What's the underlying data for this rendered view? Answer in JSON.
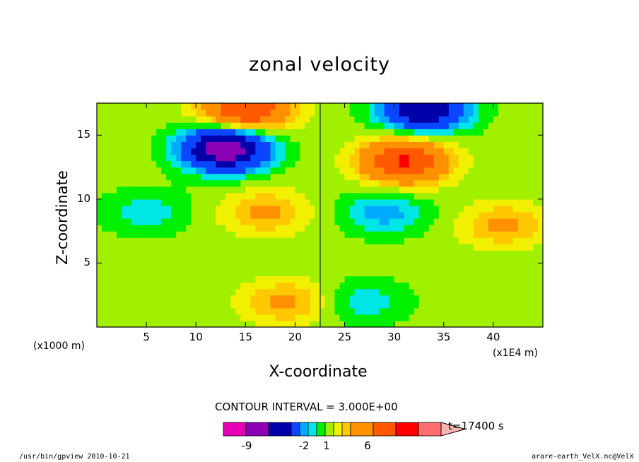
{
  "chart_data": {
    "type": "heatmap",
    "title": "zonal velocity",
    "xlabel": "X-coordinate",
    "ylabel": "Z-coordinate",
    "x_unit": "(x1E4 m)",
    "y_unit": "(x1000 m)",
    "xlim": [
      0,
      45
    ],
    "ylim": [
      0,
      17.5
    ],
    "xticks": [
      5,
      10,
      15,
      20,
      25,
      30,
      35,
      40
    ],
    "yticks": [
      5,
      10,
      15
    ],
    "contour_interval_text": "CONTOUR INTERVAL = 3.000E+00",
    "time_text": "t=17400 s",
    "colorbar": {
      "levels": [
        -12,
        -9,
        -6,
        -3,
        -2,
        -1,
        0,
        1,
        2,
        3,
        6,
        9,
        12
      ],
      "colors": [
        "#e600b4",
        "#8c00b4",
        "#0000aa",
        "#0a46ff",
        "#00aaff",
        "#00e6e6",
        "#00f000",
        "#a0f000",
        "#f0f000",
        "#ffc800",
        "#ff9100",
        "#ff5a00",
        "#ff0000",
        "#ff6e6e",
        "#ffb4b4"
      ],
      "labels": [
        "-9",
        "-2",
        "1",
        "6"
      ]
    },
    "features": [
      {
        "x": 13,
        "z": 14,
        "value": -12,
        "label": "negative core upper left"
      },
      {
        "x": 31,
        "z": 13,
        "value": 9,
        "label": "positive core upper right"
      },
      {
        "x": 15,
        "z": 17,
        "value": 9,
        "label": "positive top left"
      },
      {
        "x": 33,
        "z": 17,
        "value": -9,
        "label": "negative top right"
      },
      {
        "x": 5,
        "z": 9,
        "value": -2,
        "label": "negative mid left"
      },
      {
        "x": 41,
        "z": 8,
        "value": 3,
        "label": "positive mid right"
      },
      {
        "x": 17,
        "z": 9,
        "value": 3,
        "label": "positive mid center-left"
      },
      {
        "x": 29,
        "z": 9,
        "value": -3,
        "label": "negative mid center-right"
      },
      {
        "x": 19,
        "z": 2,
        "value": 3,
        "label": "positive low left"
      },
      {
        "x": 27,
        "z": 2,
        "value": -2,
        "label": "negative low right"
      }
    ]
  },
  "footer": {
    "left": "/usr/bin/gpview  2010-10-21",
    "right": "arare-earth_VelX.nc@VelX"
  }
}
